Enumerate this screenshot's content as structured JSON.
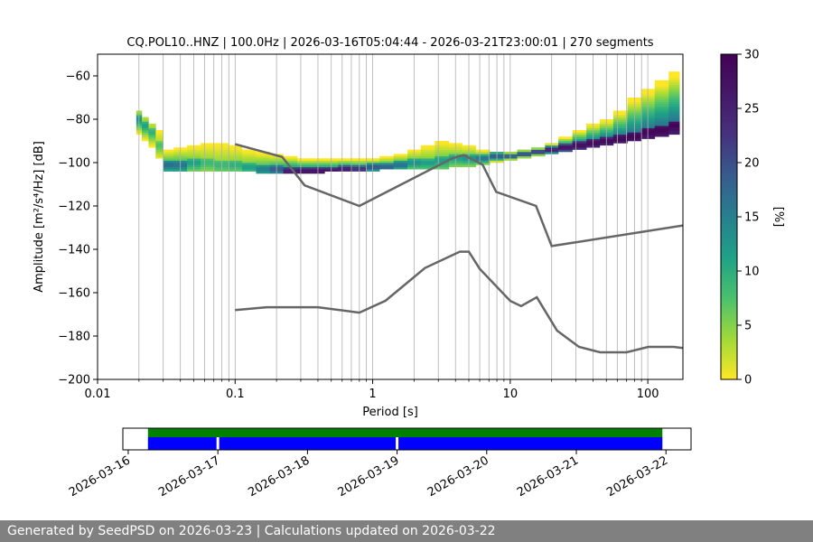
{
  "footer": {
    "text": "Generated by SeedPSD on 2026-03-23 | Calculations updated on 2026-03-22"
  },
  "chart_data": [
    {
      "type": "heatmap",
      "title": "CQ.POL10..HNZ | 100.0Hz | 2026-03-16T05:04:44 - 2026-03-21T23:00:01 | 270 segments",
      "xlabel": "Period [s]",
      "ylabel": "Amplitude [m²/s⁴/Hz] [dB]",
      "xscale": "log",
      "xlim": [
        0.01,
        180
      ],
      "ylim": [
        -200,
        -50
      ],
      "x_ticks": [
        0.01,
        0.1,
        1,
        10,
        100
      ],
      "x_tick_labels": [
        "0.01",
        "0.1",
        "1",
        "10",
        "100"
      ],
      "y_ticks": [
        -200,
        -180,
        -160,
        -140,
        -120,
        -100,
        -80,
        -60
      ],
      "y_tick_labels": [
        "−200",
        "−180",
        "−160",
        "−140",
        "−120",
        "−100",
        "−80",
        "−60"
      ],
      "grid": "vertical",
      "colorbar": {
        "label": "[%]",
        "range": [
          0,
          30
        ],
        "ticks": [
          0,
          5,
          10,
          15,
          20,
          25,
          30
        ],
        "tick_labels": [
          "0",
          "5",
          "10",
          "15",
          "20",
          "25",
          "30"
        ],
        "colormap": "viridis_r"
      },
      "mode_line": {
        "x": [
          0.02,
          0.025,
          0.03,
          0.05,
          0.08,
          0.12,
          0.2,
          0.3,
          0.5,
          0.8,
          1.2,
          2,
          3,
          4,
          5,
          6,
          8,
          10,
          15,
          20,
          40,
          80,
          180
        ],
        "y": [
          -80,
          -86,
          -100,
          -101,
          -101,
          -102,
          -103,
          -104,
          -104,
          -103,
          -102,
          -100,
          -99,
          -98,
          -98,
          -98,
          -97,
          -97,
          -95,
          -94,
          -92,
          -88,
          -83
        ]
      },
      "nhnm": {
        "x": [
          0.1,
          0.22,
          0.32,
          0.8,
          3.8,
          4.6,
          6.3,
          7.9,
          15.4,
          20,
          180
        ],
        "y": [
          -91.5,
          -97.4,
          -110.5,
          -120,
          -98,
          -96.5,
          -101,
          -113.5,
          -120,
          -138.5,
          -129
        ]
      },
      "nlnm": {
        "x": [
          0.1,
          0.17,
          0.4,
          0.8,
          1.24,
          2.4,
          4.3,
          5,
          6,
          10,
          12,
          15.6,
          21.9,
          31.6,
          45,
          70,
          101,
          154,
          180
        ],
        "y": [
          -168,
          -166.7,
          -166.7,
          -169.2,
          -163.7,
          -148.6,
          -141.1,
          -141.1,
          -149,
          -163.8,
          -166.2,
          -162.1,
          -177.5,
          -185,
          -187.5,
          -187.5,
          -185,
          -185,
          -185.5
        ]
      },
      "line_color": "#666666",
      "density": [
        {
          "x": 0.02,
          "ymin": -87,
          "ymax": -76,
          "peak": -80,
          "pct": 14
        },
        {
          "x": 0.022,
          "ymin": -90,
          "ymax": -79,
          "peak": -83,
          "pct": 12
        },
        {
          "x": 0.025,
          "ymin": -93,
          "ymax": -82,
          "peak": -86,
          "pct": 10
        },
        {
          "x": 0.028,
          "ymin": -98,
          "ymax": -85,
          "peak": -92,
          "pct": 8
        },
        {
          "x": 0.032,
          "ymin": -104,
          "ymax": -94,
          "peak": -101,
          "pct": 18
        },
        {
          "x": 0.04,
          "ymin": -104,
          "ymax": -93,
          "peak": -101,
          "pct": 17
        },
        {
          "x": 0.05,
          "ymin": -104,
          "ymax": -92,
          "peak": -100,
          "pct": 12
        },
        {
          "x": 0.063,
          "ymin": -104,
          "ymax": -91,
          "peak": -100,
          "pct": 9
        },
        {
          "x": 0.08,
          "ymin": -104,
          "ymax": -91,
          "peak": -101,
          "pct": 9
        },
        {
          "x": 0.1,
          "ymin": -104,
          "ymax": -92,
          "peak": -101,
          "pct": 10
        },
        {
          "x": 0.126,
          "ymin": -104,
          "ymax": -94,
          "peak": -102,
          "pct": 12
        },
        {
          "x": 0.16,
          "ymin": -105,
          "ymax": -95,
          "peak": -103,
          "pct": 16
        },
        {
          "x": 0.2,
          "ymin": -105,
          "ymax": -96,
          "peak": -103,
          "pct": 20
        },
        {
          "x": 0.25,
          "ymin": -105,
          "ymax": -97,
          "peak": -104,
          "pct": 28
        },
        {
          "x": 0.32,
          "ymin": -105,
          "ymax": -98,
          "peak": -104,
          "pct": 30
        },
        {
          "x": 0.4,
          "ymin": -105,
          "ymax": -98,
          "peak": -104,
          "pct": 30
        },
        {
          "x": 0.5,
          "ymin": -104,
          "ymax": -98,
          "peak": -104,
          "pct": 30
        },
        {
          "x": 0.63,
          "ymin": -104,
          "ymax": -98,
          "peak": -103,
          "pct": 28
        },
        {
          "x": 0.8,
          "ymin": -104,
          "ymax": -98,
          "peak": -103,
          "pct": 25
        },
        {
          "x": 1,
          "ymin": -104,
          "ymax": -98,
          "peak": -102,
          "pct": 22
        },
        {
          "x": 1.26,
          "ymin": -103,
          "ymax": -97,
          "peak": -102,
          "pct": 20
        },
        {
          "x": 1.6,
          "ymin": -103,
          "ymax": -96,
          "peak": -101,
          "pct": 18
        },
        {
          "x": 2,
          "ymin": -103,
          "ymax": -94,
          "peak": -100,
          "pct": 14
        },
        {
          "x": 2.5,
          "ymin": -103,
          "ymax": -92,
          "peak": -100,
          "pct": 12
        },
        {
          "x": 3.2,
          "ymin": -103,
          "ymax": -90,
          "peak": -99,
          "pct": 12
        },
        {
          "x": 4,
          "ymin": -102,
          "ymax": -91,
          "peak": -98,
          "pct": 12
        },
        {
          "x": 5,
          "ymin": -102,
          "ymax": -92,
          "peak": -98,
          "pct": 14
        },
        {
          "x": 6.3,
          "ymin": -101,
          "ymax": -94,
          "peak": -98,
          "pct": 18
        },
        {
          "x": 8,
          "ymin": -100,
          "ymax": -95,
          "peak": -97,
          "pct": 22
        },
        {
          "x": 10,
          "ymin": -99,
          "ymax": -95,
          "peak": -97,
          "pct": 24
        },
        {
          "x": 12.6,
          "ymin": -98,
          "ymax": -94,
          "peak": -96,
          "pct": 26
        },
        {
          "x": 16,
          "ymin": -97,
          "ymax": -93,
          "peak": -95,
          "pct": 28
        },
        {
          "x": 20,
          "ymin": -96,
          "ymax": -91,
          "peak": -94,
          "pct": 30
        },
        {
          "x": 25,
          "ymin": -95,
          "ymax": -88,
          "peak": -93,
          "pct": 30
        },
        {
          "x": 32,
          "ymin": -94,
          "ymax": -85,
          "peak": -92,
          "pct": 30
        },
        {
          "x": 40,
          "ymin": -93,
          "ymax": -82,
          "peak": -91,
          "pct": 30
        },
        {
          "x": 50,
          "ymin": -92,
          "ymax": -80,
          "peak": -90,
          "pct": 30
        },
        {
          "x": 63,
          "ymin": -91,
          "ymax": -76,
          "peak": -89,
          "pct": 30
        },
        {
          "x": 80,
          "ymin": -90,
          "ymax": -70,
          "peak": -88,
          "pct": 30
        },
        {
          "x": 100,
          "ymin": -89,
          "ymax": -66,
          "peak": -86,
          "pct": 30
        },
        {
          "x": 126,
          "ymin": -88,
          "ymax": -62,
          "peak": -85,
          "pct": 30
        },
        {
          "x": 160,
          "ymin": -87,
          "ymax": -58,
          "peak": -83,
          "pct": 30
        }
      ]
    },
    {
      "type": "timeline",
      "tick_labels": [
        "2026-03-16",
        "2026-03-17",
        "2026-03-18",
        "2026-03-19",
        "2026-03-20",
        "2026-03-21",
        "2026-03-22"
      ],
      "tick_values": [
        16,
        17,
        18,
        19,
        20,
        21,
        22
      ],
      "xlim": [
        15.94,
        22.28
      ],
      "coverage_color": "#008000",
      "data_color": "#0000ff",
      "coverage": [
        [
          16.22,
          21.96
        ]
      ],
      "data": [
        [
          16.22,
          16.985
        ],
        [
          17.015,
          18.985
        ],
        [
          19.015,
          21.96
        ]
      ]
    }
  ]
}
